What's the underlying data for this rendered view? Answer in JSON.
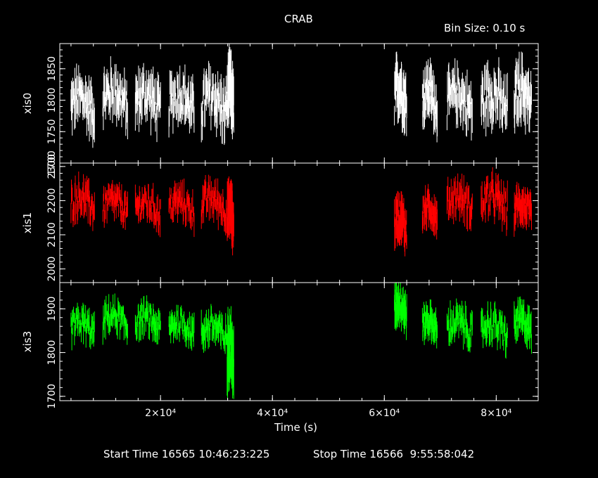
{
  "header": {
    "title": "CRAB",
    "bin_size": "Bin Size: 0.10 s"
  },
  "footer": {
    "start_time": "Start Time 16565 10:46:23:225",
    "stop_time": "Stop Time 16566  9:55:58:042"
  },
  "chart_data": {
    "type": "line",
    "title": "CRAB",
    "xlabel": "Time (s)",
    "xlim": [
      2000,
      87500
    ],
    "x_ticks": [
      {
        "value": 20000,
        "label": "2×10⁴"
      },
      {
        "value": 40000,
        "label": "4×10⁴"
      },
      {
        "value": 60000,
        "label": "6×10⁴"
      },
      {
        "value": 80000,
        "label": "8×10⁴"
      }
    ],
    "panels": [
      {
        "name": "xis0",
        "ylabel": "xis0",
        "color": "#ffffff",
        "ylim": [
          1700,
          1890
        ],
        "y_ticks": [
          1700,
          1750,
          1800,
          1850
        ],
        "segments": [
          {
            "start": 4000,
            "end": 8200,
            "mean": 1790,
            "amp": 45
          },
          {
            "start": 9700,
            "end": 14200,
            "mean": 1800,
            "amp": 45
          },
          {
            "start": 15500,
            "end": 20000,
            "mean": 1795,
            "amp": 45
          },
          {
            "start": 21500,
            "end": 26000,
            "mean": 1795,
            "amp": 45
          },
          {
            "start": 27300,
            "end": 31800,
            "mean": 1790,
            "amp": 50
          },
          {
            "start": 31900,
            "end": 33100,
            "mean": 1800,
            "amp": 55
          },
          {
            "start": 61800,
            "end": 64000,
            "mean": 1805,
            "amp": 50
          },
          {
            "start": 66800,
            "end": 69500,
            "mean": 1800,
            "amp": 45
          },
          {
            "start": 71200,
            "end": 75800,
            "mean": 1795,
            "amp": 45
          },
          {
            "start": 77300,
            "end": 82000,
            "mean": 1795,
            "amp": 50
          },
          {
            "start": 83200,
            "end": 86300,
            "mean": 1800,
            "amp": 50
          }
        ]
      },
      {
        "name": "xis1",
        "ylabel": "xis1",
        "color": "#ff0000",
        "ylim": [
          1960,
          2310
        ],
        "y_ticks": [
          2000,
          2100,
          2200,
          2300
        ],
        "segments": [
          {
            "start": 4000,
            "end": 8200,
            "mean": 2190,
            "amp": 60
          },
          {
            "start": 9700,
            "end": 14200,
            "mean": 2180,
            "amp": 55
          },
          {
            "start": 15500,
            "end": 20000,
            "mean": 2175,
            "amp": 55
          },
          {
            "start": 21500,
            "end": 26000,
            "mean": 2180,
            "amp": 55
          },
          {
            "start": 27300,
            "end": 31800,
            "mean": 2185,
            "amp": 60
          },
          {
            "start": 31900,
            "end": 33100,
            "mean": 2150,
            "amp": 80
          },
          {
            "start": 61800,
            "end": 64000,
            "mean": 2130,
            "amp": 70
          },
          {
            "start": 66800,
            "end": 69500,
            "mean": 2160,
            "amp": 55
          },
          {
            "start": 71200,
            "end": 75800,
            "mean": 2190,
            "amp": 60
          },
          {
            "start": 77300,
            "end": 82000,
            "mean": 2190,
            "amp": 65
          },
          {
            "start": 83200,
            "end": 86300,
            "mean": 2170,
            "amp": 60
          }
        ]
      },
      {
        "name": "xis3",
        "ylabel": "xis3",
        "color": "#00ff00",
        "ylim": [
          1690,
          1960
        ],
        "y_ticks": [
          1700,
          1800,
          1900
        ],
        "segments": [
          {
            "start": 4000,
            "end": 8200,
            "mean": 1855,
            "amp": 40
          },
          {
            "start": 9700,
            "end": 14200,
            "mean": 1870,
            "amp": 40
          },
          {
            "start": 15500,
            "end": 20000,
            "mean": 1865,
            "amp": 40
          },
          {
            "start": 21500,
            "end": 26000,
            "mean": 1855,
            "amp": 40
          },
          {
            "start": 27300,
            "end": 31800,
            "mean": 1845,
            "amp": 45
          },
          {
            "start": 31900,
            "end": 33100,
            "mean": 1790,
            "amp": 80
          },
          {
            "start": 61800,
            "end": 64000,
            "mean": 1900,
            "amp": 50
          },
          {
            "start": 66800,
            "end": 69500,
            "mean": 1860,
            "amp": 40
          },
          {
            "start": 71200,
            "end": 75800,
            "mean": 1855,
            "amp": 45
          },
          {
            "start": 77300,
            "end": 82000,
            "mean": 1850,
            "amp": 45
          },
          {
            "start": 83200,
            "end": 86300,
            "mean": 1860,
            "amp": 45
          }
        ]
      }
    ]
  }
}
